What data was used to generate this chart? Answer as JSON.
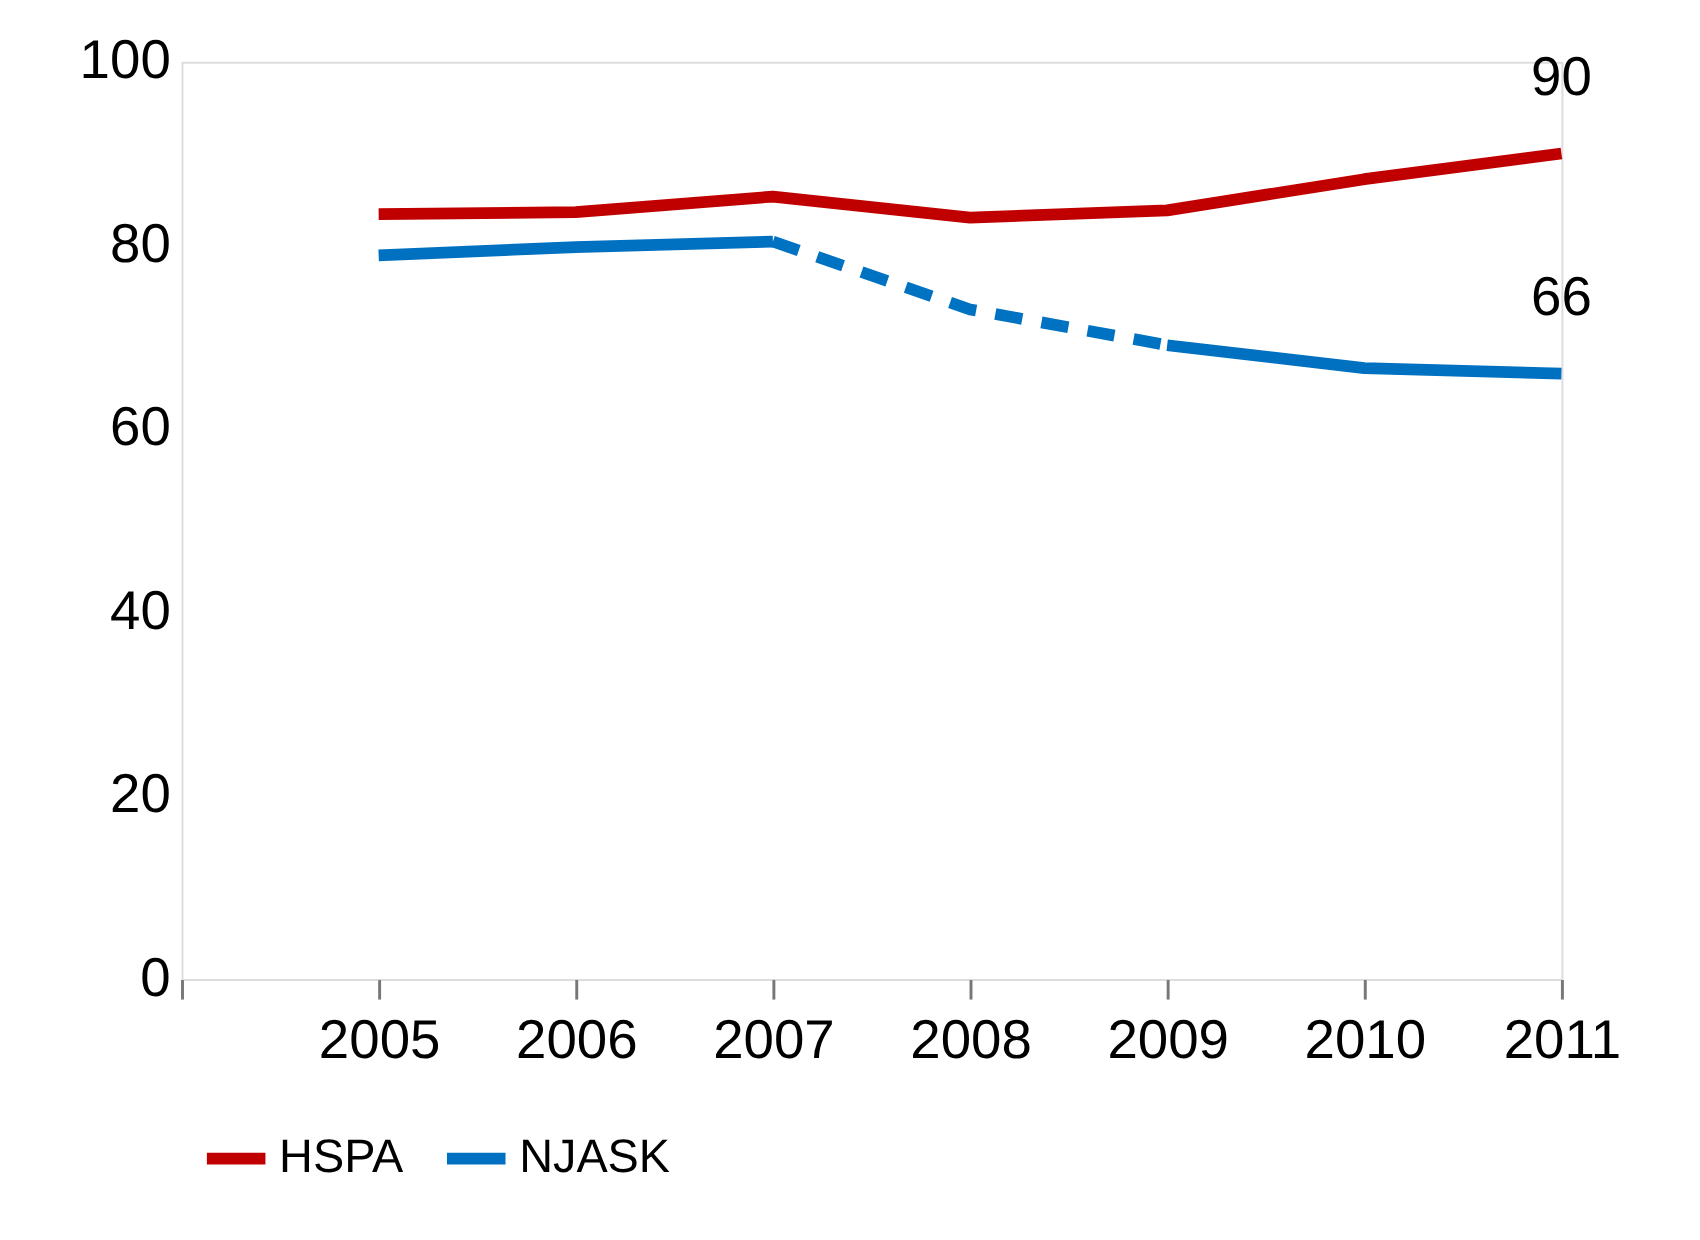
{
  "chart_data": {
    "type": "line",
    "x": [
      2005,
      2006,
      2007,
      2008,
      2009,
      2010,
      2011
    ],
    "xlim": [
      2004,
      2011
    ],
    "xticks": [
      {
        "value": 2004,
        "label": null
      },
      2005,
      2006,
      2007,
      2008,
      2009,
      2010,
      2011
    ],
    "ylim": [
      0,
      100
    ],
    "yticks": [
      0,
      20,
      40,
      60,
      80,
      100
    ],
    "series": [
      {
        "name": "HSPA",
        "color": "#c00000",
        "values": [
          83.4,
          83.6,
          85.3,
          83.0,
          83.8,
          87.2,
          90
        ],
        "value_labels": [
          null,
          null,
          null,
          null,
          null,
          null,
          "90"
        ]
      },
      {
        "name": "NJASK",
        "color": "#0070c0",
        "values": [
          78.9,
          79.8,
          80.4,
          null,
          69.1,
          66.6,
          66
        ],
        "value_labels": [
          null,
          null,
          null,
          null,
          null,
          null,
          "66"
        ]
      },
      {
        "color": "#0072c2",
        "line_style": "dashed",
        "x": [
          2007,
          2008,
          2009
        ],
        "values": [
          80.4,
          73.0,
          69.1
        ]
      }
    ],
    "grid": false,
    "legend": "bottom",
    "marker": "none",
    "line_style": "solid"
  }
}
